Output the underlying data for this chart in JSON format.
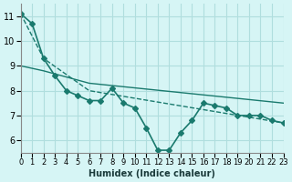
{
  "xlabel": "Humidex (Indice chaleur)",
  "ylabel": "",
  "background_color": "#d6f5f5",
  "grid_color": "#b0dede",
  "line_color": "#1a7a6e",
  "xlim": [
    0,
    23
  ],
  "ylim": [
    5.5,
    11.5
  ],
  "yticks": [
    6,
    7,
    8,
    9,
    10,
    11
  ],
  "xticks": [
    0,
    1,
    2,
    3,
    4,
    5,
    6,
    7,
    8,
    9,
    10,
    11,
    12,
    13,
    14,
    15,
    16,
    17,
    18,
    19,
    20,
    21,
    22,
    23
  ],
  "series": [
    {
      "x": [
        0,
        1,
        2,
        3,
        4,
        5,
        6,
        7,
        8,
        9,
        10,
        11,
        12,
        13,
        14,
        15,
        16,
        17,
        18,
        19,
        20,
        21,
        22,
        23
      ],
      "y": [
        11.1,
        10.7,
        9.3,
        8.6,
        8.0,
        7.8,
        7.6,
        7.6,
        8.1,
        7.5,
        7.3,
        6.5,
        5.6,
        5.6,
        6.3,
        6.8,
        7.5,
        7.4,
        7.3,
        7.0,
        7.0,
        7.0,
        6.8,
        6.7
      ],
      "marker": "D",
      "markersize": 3,
      "linewidth": 1.2
    },
    {
      "x": [
        0,
        2,
        6,
        23
      ],
      "y": [
        11.1,
        9.3,
        8.0,
        6.7
      ],
      "marker": null,
      "linewidth": 1.0,
      "linestyle": "--"
    },
    {
      "x": [
        0,
        2,
        6,
        23
      ],
      "y": [
        9.0,
        8.8,
        8.3,
        7.5
      ],
      "marker": null,
      "linewidth": 1.0,
      "linestyle": "-"
    }
  ]
}
